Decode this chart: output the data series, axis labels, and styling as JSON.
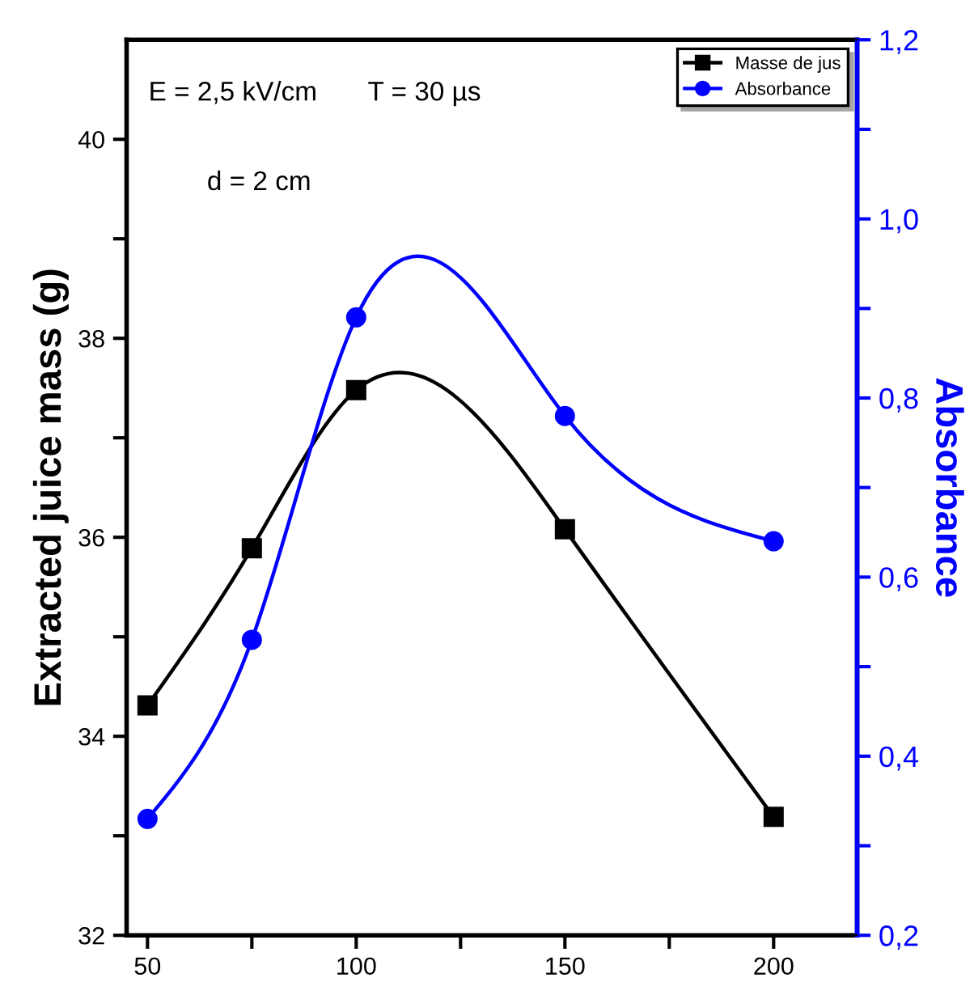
{
  "chart_data": {
    "type": "line",
    "ylabel": "Extracted juice mass (g)",
    "y2label": "Absorbance",
    "x": [
      50,
      75,
      100,
      150,
      200
    ],
    "series": [
      {
        "name": "Masse de jus",
        "color": "#000000",
        "marker": "square",
        "values": [
          34.31,
          35.89,
          37.48,
          36.08,
          33.19
        ]
      },
      {
        "name": "Absorbance",
        "color": "#0000ff",
        "marker": "circle",
        "axis": "y2",
        "values": [
          0.33,
          0.53,
          0.89,
          0.78,
          0.64
        ]
      }
    ],
    "xlim": [
      45,
      220
    ],
    "xticks": [
      50,
      {
        "value": 75,
        "label": null
      },
      100,
      {
        "value": 125,
        "label": null
      },
      150,
      {
        "value": 175,
        "label": null
      },
      200
    ],
    "ylim": [
      32,
      41
    ],
    "yticks": [
      32,
      {
        "value": 33,
        "label": null
      },
      34,
      {
        "value": 35,
        "label": null
      },
      36,
      {
        "value": 37,
        "label": null
      },
      38,
      {
        "value": 39,
        "label": null
      },
      40
    ],
    "y2lim": [
      0.2,
      1.2
    ],
    "y2ticks": [
      {
        "value": 0.2,
        "label": "0,2"
      },
      {
        "value": 0.3,
        "label": null
      },
      {
        "value": 0.4,
        "label": "0,4"
      },
      {
        "value": 0.5,
        "label": null
      },
      {
        "value": 0.6,
        "label": "0,6"
      },
      {
        "value": 0.7,
        "label": null
      },
      {
        "value": 0.8,
        "label": "0,8"
      },
      {
        "value": 0.9,
        "label": null
      },
      {
        "value": 1.0,
        "label": "1,0"
      },
      {
        "value": 1.1,
        "label": null
      },
      {
        "value": 1.2,
        "label": "1,2"
      }
    ],
    "annotations": [
      "E = 2,5 kV/cm",
      "T = 30 µs",
      "d = 2 cm"
    ],
    "legend": "top right",
    "grid": false,
    "line_style": "solid"
  }
}
